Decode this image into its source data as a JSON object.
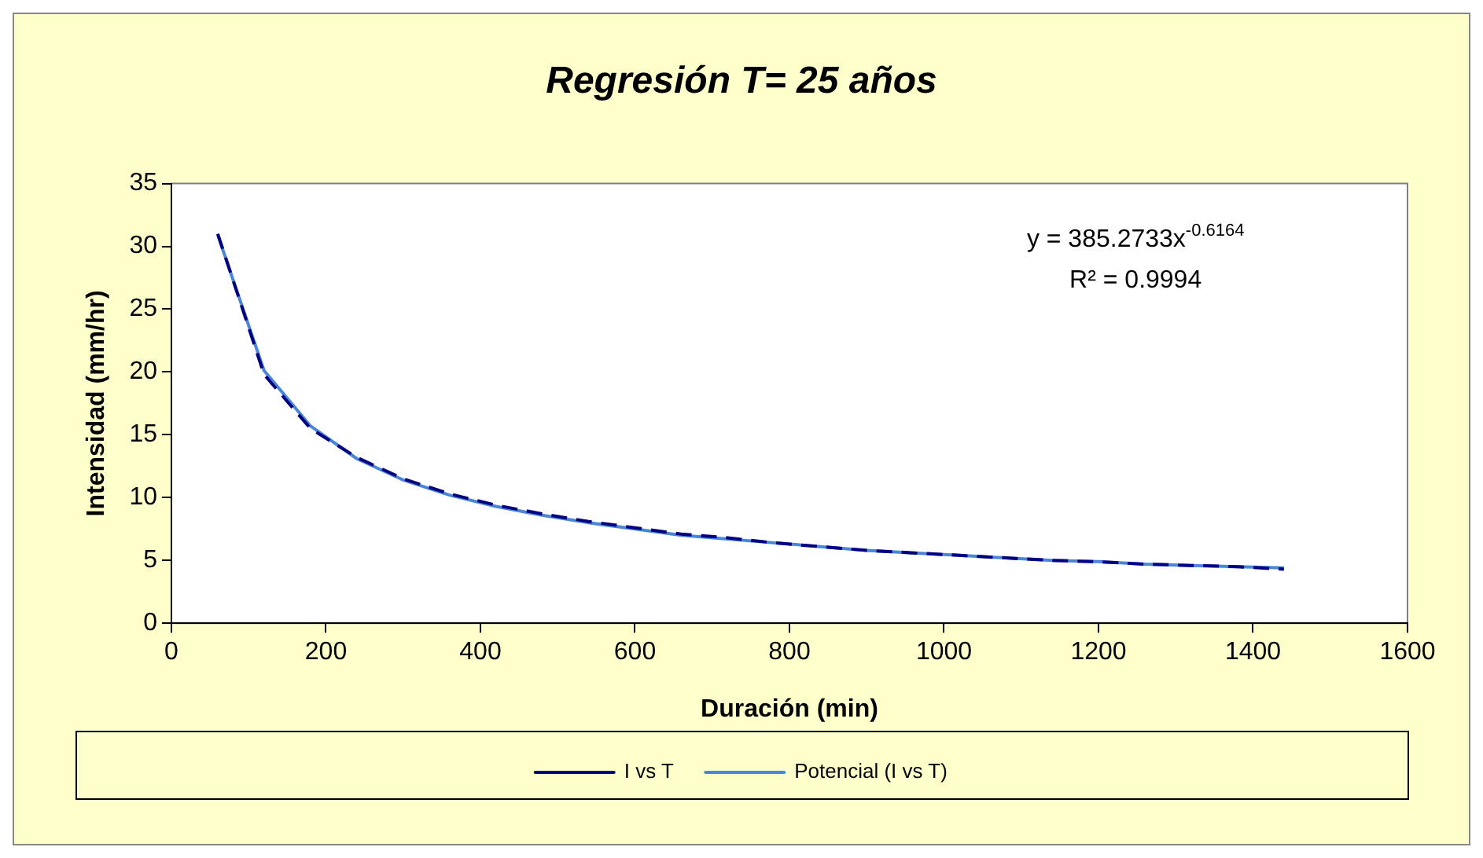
{
  "chart_data": {
    "type": "line",
    "title": "Regresión T= 25 años",
    "xlabel": "Duración (min)",
    "ylabel": "Intensidad (mm/hr)",
    "x": [
      60,
      120,
      180,
      240,
      300,
      360,
      420,
      480,
      540,
      600,
      660,
      720,
      780,
      840,
      900,
      960,
      1020,
      1080,
      1140,
      1200,
      1260,
      1320,
      1380,
      1440
    ],
    "series": [
      {
        "name": "I vs T",
        "color": "#000080",
        "line_style": "dashed",
        "values": [
          31.0,
          19.8,
          15.5,
          13.2,
          11.5,
          10.3,
          9.4,
          8.7,
          8.1,
          7.6,
          7.1,
          6.8,
          6.4,
          6.1,
          5.8,
          5.6,
          5.4,
          5.2,
          5.0,
          4.9,
          4.7,
          4.6,
          4.5,
          4.3
        ]
      },
      {
        "name": "Potencial (I vs T)",
        "color": "#4a86d8",
        "line_style": "solid",
        "values": [
          30.9,
          20.1,
          15.7,
          13.1,
          11.4,
          10.2,
          9.3,
          8.6,
          8.0,
          7.5,
          7.0,
          6.7,
          6.4,
          6.1,
          5.8,
          5.6,
          5.4,
          5.2,
          5.0,
          4.9,
          4.7,
          4.6,
          4.5,
          4.4
        ]
      }
    ],
    "xlim": [
      0,
      1600
    ],
    "xticks": [
      0,
      200,
      400,
      600,
      800,
      1000,
      1200,
      1400,
      1600
    ],
    "ylim": [
      0,
      35
    ],
    "yticks": [
      0,
      5,
      10,
      15,
      20,
      25,
      30,
      35
    ],
    "marker": "none",
    "grid": false,
    "legend": "bottom",
    "annotations": [
      "y = 385.2733x$^{-0.6164}$",
      "R² = 0.9994"
    ]
  }
}
